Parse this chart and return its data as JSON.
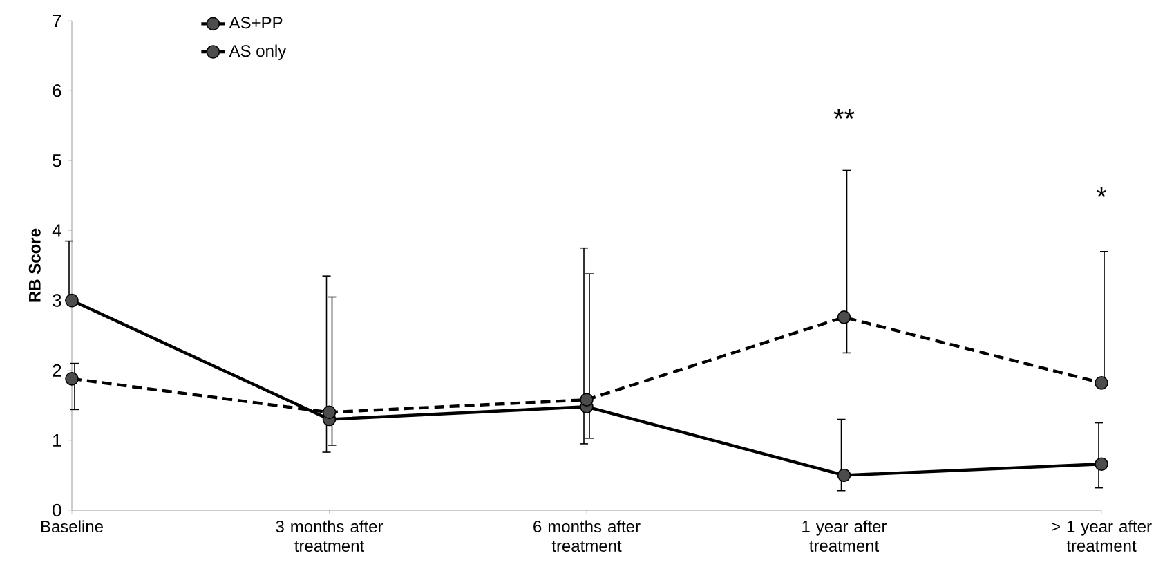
{
  "chart_data": {
    "type": "line",
    "ylabel": "**RB Score**",
    "categories": [
      "Baseline",
      "3 months after treatment",
      "6 months after treatment",
      "1 year after treatment",
      "> 1 year after treatment"
    ],
    "series": [
      {
        "name": "AS+PP",
        "color": "#000000",
        "line_style": "solid",
        "values": [
          3.0,
          1.3,
          1.48,
          0.5,
          0.66
        ],
        "errors": [
          [
            3.0,
            3.85
          ],
          [
            0.83,
            3.35
          ],
          [
            0.95,
            3.75
          ],
          [
            0.28,
            1.3
          ],
          [
            0.32,
            1.25
          ]
        ]
      },
      {
        "name": "AS only",
        "color": "#000000",
        "line_style": "dashed",
        "values": [
          1.88,
          1.4,
          1.58,
          2.76,
          1.82
        ],
        "errors": [
          [
            1.44,
            2.1
          ],
          [
            0.93,
            3.05
          ],
          [
            1.03,
            3.38
          ],
          [
            2.25,
            4.86
          ],
          [
            1.82,
            3.7
          ]
        ]
      }
    ],
    "ylim": [
      0,
      7
    ],
    "yticks": [
      0,
      1,
      2,
      3,
      4,
      5,
      6,
      7
    ],
    "grid": false,
    "legend": "top left",
    "marker": "circle",
    "annotations": [
      "**",
      "*"
    ]
  }
}
